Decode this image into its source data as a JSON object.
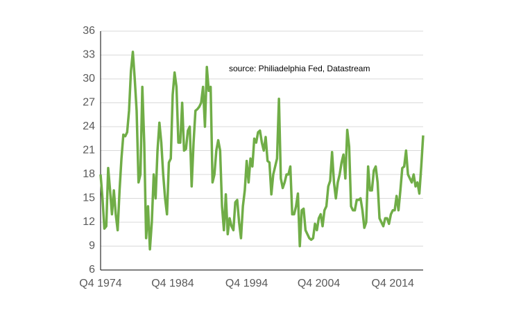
{
  "chart_data": {
    "type": "line",
    "annotation": "source:  Philiadelphia Fed, Datastream",
    "categories": [
      "Q4 1974",
      null,
      null,
      null,
      null,
      null,
      null,
      null,
      null,
      null,
      null,
      null,
      null,
      null,
      null,
      null,
      null,
      null,
      null,
      null,
      null,
      null,
      null,
      null,
      null,
      null,
      null,
      null,
      null,
      null,
      null,
      null,
      null,
      null,
      null,
      null,
      null,
      null,
      "Q4 1984",
      null,
      null,
      null,
      null,
      null,
      null,
      null,
      null,
      null,
      null,
      null,
      null,
      null,
      null,
      null,
      null,
      null,
      null,
      null,
      null,
      null,
      null,
      null,
      null,
      null,
      null,
      null,
      null,
      null,
      null,
      null,
      null,
      null,
      null,
      null,
      null,
      null,
      null,
      "Q4 1994",
      null,
      null,
      null,
      null,
      null,
      null,
      null,
      null,
      null,
      null,
      null,
      null,
      null,
      null,
      null,
      null,
      null,
      null,
      null,
      null,
      null,
      null,
      null,
      null,
      null,
      null,
      null,
      null,
      null,
      null,
      null,
      null,
      null,
      null,
      null,
      null,
      null,
      "Q4 2004",
      null,
      null,
      null,
      null,
      null,
      null,
      null,
      null,
      null,
      null,
      null,
      null,
      null,
      null,
      null,
      null,
      null,
      null,
      null,
      null,
      null,
      null,
      null,
      null,
      null,
      null,
      null,
      null,
      null,
      null,
      null,
      null,
      null,
      null,
      null,
      null,
      null,
      null,
      "Q4 2014",
      null,
      null,
      null,
      null,
      null,
      null,
      null,
      null,
      null,
      null,
      null,
      null,
      null,
      null,
      null,
      null
    ],
    "series": [
      {
        "color": "#70ad47",
        "values": [
          18,
          15,
          11.2,
          11.5,
          18.8,
          16,
          13,
          16,
          13,
          11,
          16,
          20,
          23,
          22.8,
          23.3,
          26,
          31,
          33.4,
          30,
          26,
          17,
          18,
          29,
          22,
          10,
          14,
          8.6,
          12,
          18,
          15,
          21,
          24.5,
          22,
          18,
          15,
          13,
          19.5,
          20,
          28,
          30.8,
          29,
          22,
          22,
          27,
          21,
          21.2,
          23.5,
          24,
          16.5,
          22,
          26,
          26.2,
          26.5,
          27,
          29,
          24,
          31.5,
          28.5,
          29,
          17,
          18,
          21,
          22.3,
          21,
          14,
          11,
          15.5,
          10.5,
          12.5,
          11.5,
          11,
          14.5,
          14.8,
          12,
          10,
          14,
          16,
          19.7,
          17,
          20,
          19,
          22.5,
          22,
          23.3,
          23.5,
          22,
          21,
          22.7,
          19.7,
          19.5,
          15.5,
          18,
          19,
          20,
          27.5,
          17.5,
          16.3,
          17,
          18,
          18,
          19,
          13,
          13,
          14,
          15.6,
          9,
          13.5,
          13.7,
          11,
          10.5,
          10,
          9.8,
          10,
          11.8,
          11,
          12.5,
          13,
          11.5,
          13.5,
          14,
          16.5,
          17.2,
          20.8,
          17,
          15,
          17,
          18,
          19.5,
          20.5,
          17.5,
          23.6,
          21.5,
          14,
          13.5,
          13.5,
          14.8,
          14.8,
          15,
          13.5,
          11.3,
          12,
          19,
          16,
          16,
          18.5,
          19,
          17,
          12.5,
          12,
          11.5,
          12.5,
          12.5,
          11.8,
          13,
          13.5,
          13.5,
          15.3,
          13.5,
          16,
          18.8,
          19,
          21,
          18,
          17.5,
          17,
          18,
          16.5,
          17,
          15.6,
          19,
          22.9
        ]
      }
    ],
    "ylim": [
      6,
      36
    ],
    "yticks": [
      6,
      9,
      12,
      15,
      18,
      21,
      24,
      27,
      30,
      33,
      36
    ],
    "grid": true
  }
}
